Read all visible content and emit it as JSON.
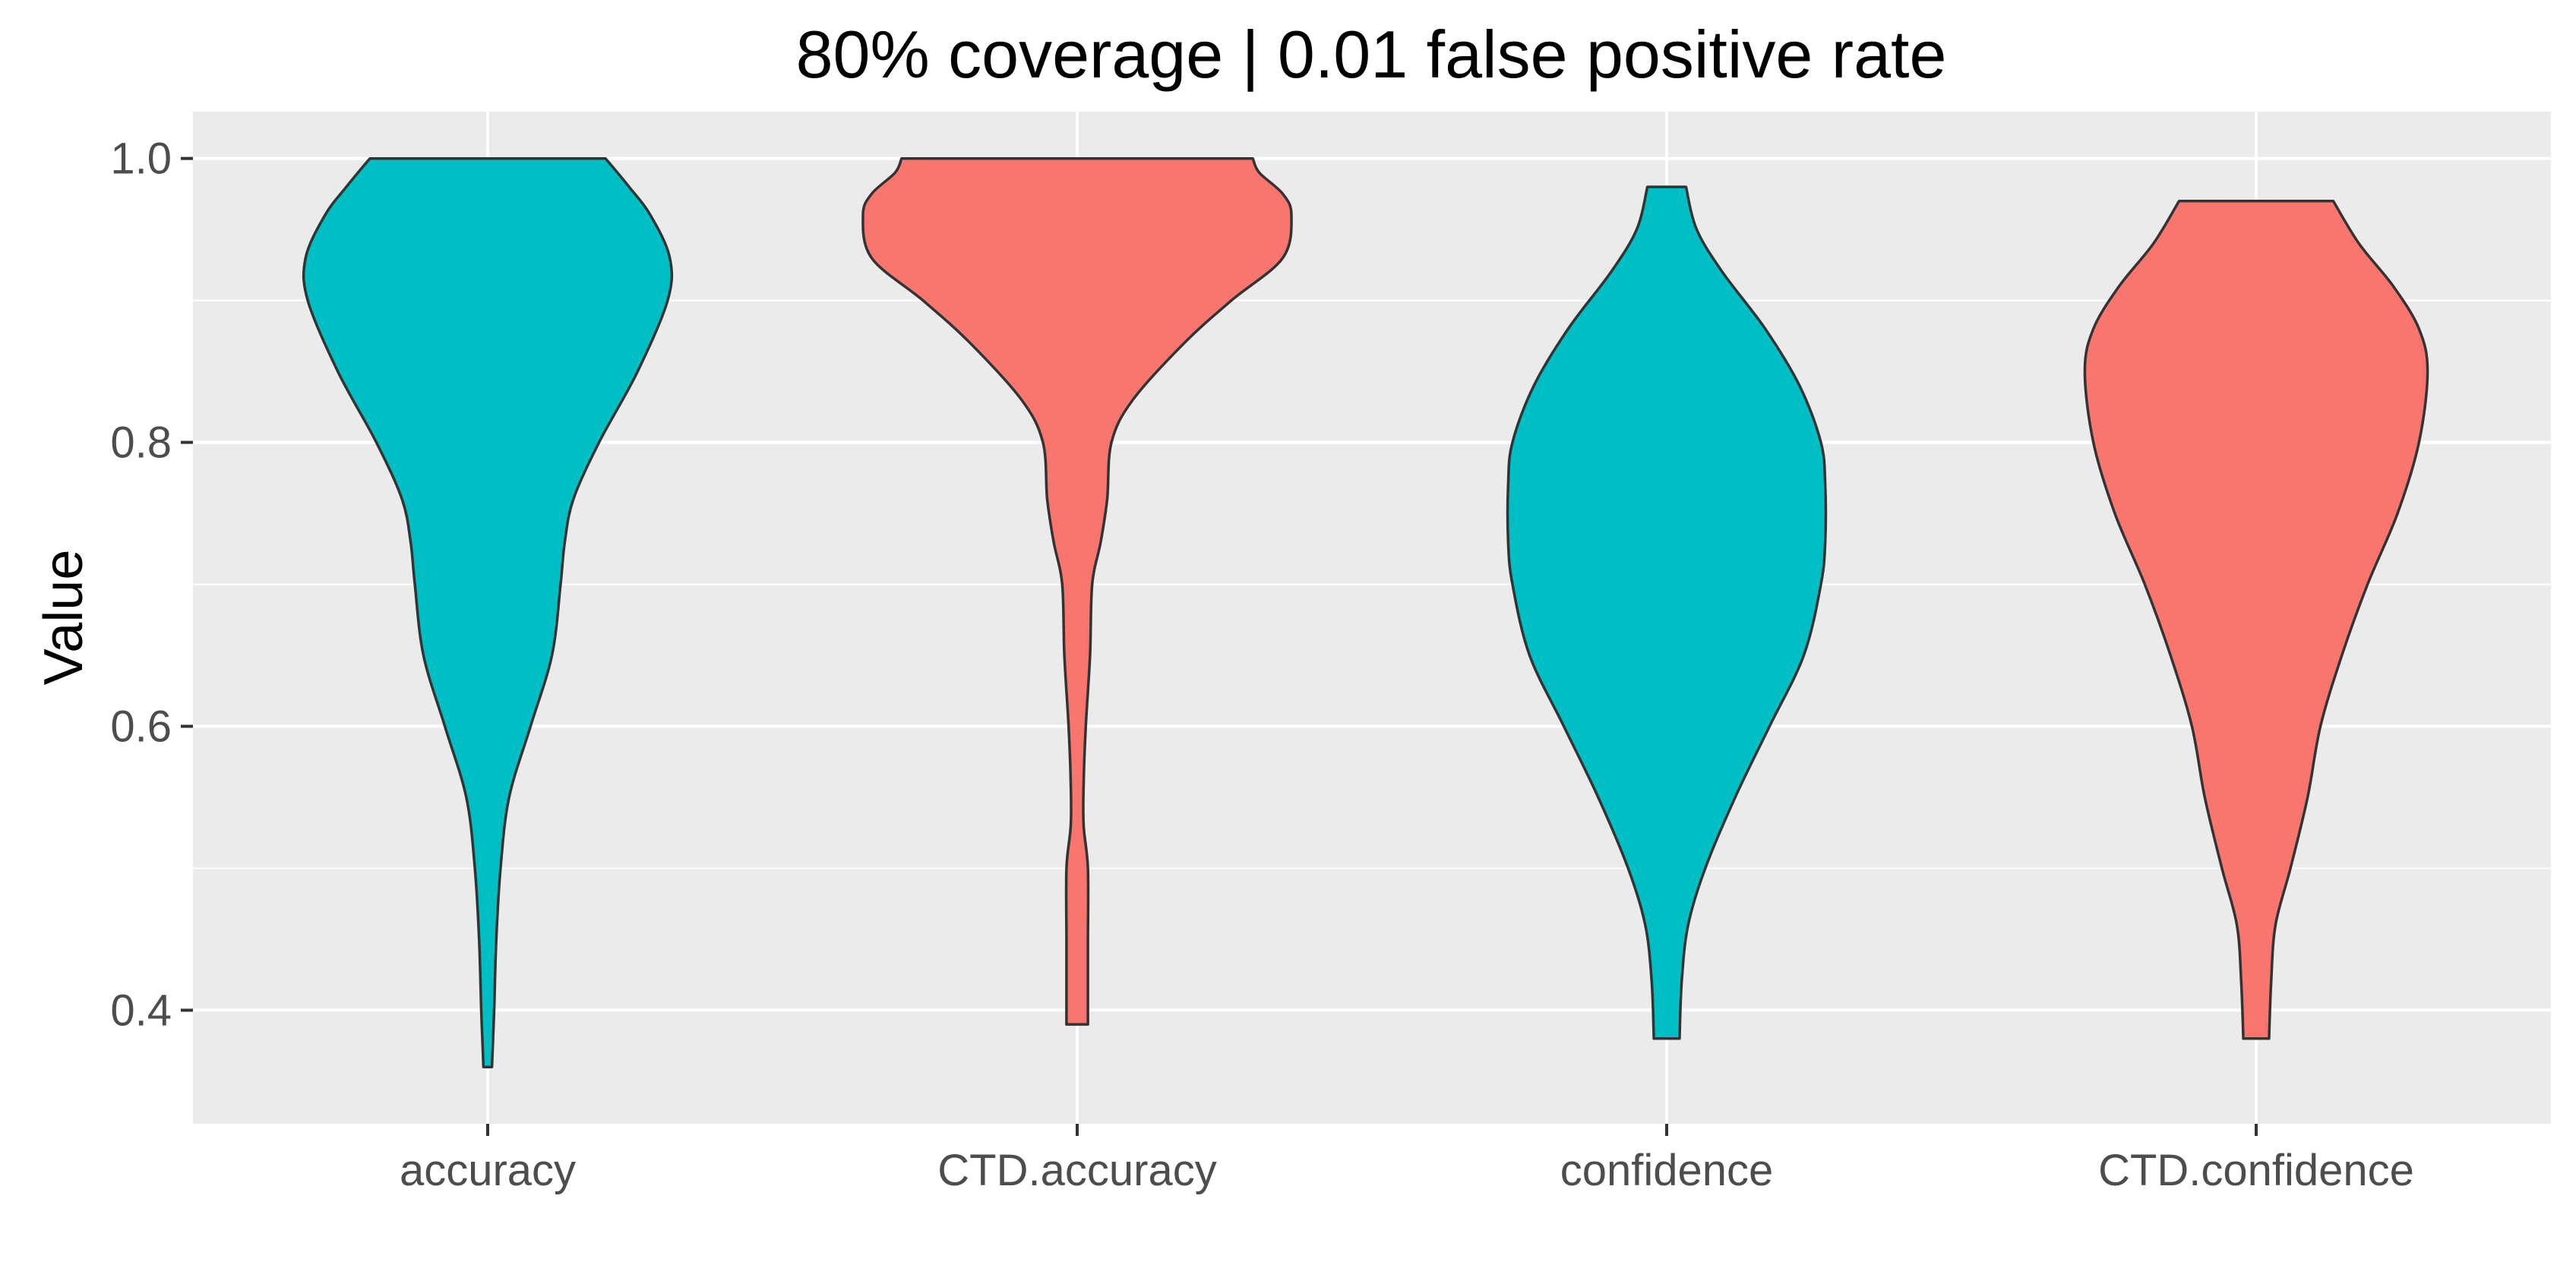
{
  "chart_data": {
    "type": "violin",
    "title": "80% coverage | 0.01 false positive rate",
    "xlabel": "",
    "ylabel": "Value",
    "ylim": [
      0.32,
      1.033
    ],
    "y_ticks": [
      "0.4",
      "0.6",
      "0.8",
      "1.0"
    ],
    "y_tick_values": [
      0.4,
      0.6,
      0.8,
      1.0
    ],
    "y_minor_ticks": [
      0.5,
      0.7,
      0.9
    ],
    "categories": [
      "accuracy",
      "CTD.accuracy",
      "confidence",
      "CTD.confidence"
    ],
    "grid": true,
    "legend": "none",
    "background": "#ebebeb",
    "colors": {
      "accuracy": "#00bfc4",
      "CTD.accuracy": "#f8766d",
      "confidence": "#00bfc4",
      "CTD.confidence": "#f8766d"
    },
    "series": [
      {
        "category": "accuracy",
        "min": 0.36,
        "max": 1.0,
        "profile": [
          [
            0.36,
            0.02
          ],
          [
            0.4,
            0.03
          ],
          [
            0.45,
            0.04
          ],
          [
            0.5,
            0.06
          ],
          [
            0.55,
            0.1
          ],
          [
            0.6,
            0.2
          ],
          [
            0.65,
            0.3
          ],
          [
            0.7,
            0.34
          ],
          [
            0.73,
            0.36
          ],
          [
            0.76,
            0.4
          ],
          [
            0.8,
            0.52
          ],
          [
            0.85,
            0.7
          ],
          [
            0.9,
            0.84
          ],
          [
            0.93,
            0.85
          ],
          [
            0.96,
            0.76
          ],
          [
            0.98,
            0.66
          ],
          [
            1.0,
            0.55
          ]
        ]
      },
      {
        "category": "CTD.accuracy",
        "min": 0.39,
        "max": 1.0,
        "profile": [
          [
            0.39,
            0.05
          ],
          [
            0.42,
            0.05
          ],
          [
            0.45,
            0.05
          ],
          [
            0.5,
            0.05
          ],
          [
            0.53,
            0.03
          ],
          [
            0.56,
            0.03
          ],
          [
            0.6,
            0.04
          ],
          [
            0.65,
            0.06
          ],
          [
            0.7,
            0.07
          ],
          [
            0.73,
            0.11
          ],
          [
            0.76,
            0.14
          ],
          [
            0.8,
            0.16
          ],
          [
            0.83,
            0.26
          ],
          [
            0.87,
            0.5
          ],
          [
            0.9,
            0.72
          ],
          [
            0.93,
            0.96
          ],
          [
            0.96,
            1.0
          ],
          [
            0.975,
            0.96
          ],
          [
            0.99,
            0.85
          ],
          [
            1.0,
            0.82
          ]
        ]
      },
      {
        "category": "confidence",
        "min": 0.38,
        "max": 0.98,
        "profile": [
          [
            0.38,
            0.06
          ],
          [
            0.42,
            0.07
          ],
          [
            0.46,
            0.1
          ],
          [
            0.5,
            0.18
          ],
          [
            0.55,
            0.32
          ],
          [
            0.6,
            0.48
          ],
          [
            0.65,
            0.64
          ],
          [
            0.7,
            0.72
          ],
          [
            0.73,
            0.74
          ],
          [
            0.77,
            0.74
          ],
          [
            0.8,
            0.72
          ],
          [
            0.84,
            0.62
          ],
          [
            0.88,
            0.46
          ],
          [
            0.92,
            0.26
          ],
          [
            0.95,
            0.14
          ],
          [
            0.98,
            0.09
          ]
        ]
      },
      {
        "category": "CTD.confidence",
        "min": 0.38,
        "max": 0.97,
        "profile": [
          [
            0.38,
            0.06
          ],
          [
            0.42,
            0.07
          ],
          [
            0.46,
            0.09
          ],
          [
            0.5,
            0.16
          ],
          [
            0.55,
            0.24
          ],
          [
            0.6,
            0.3
          ],
          [
            0.65,
            0.4
          ],
          [
            0.7,
            0.52
          ],
          [
            0.75,
            0.66
          ],
          [
            0.8,
            0.76
          ],
          [
            0.85,
            0.8
          ],
          [
            0.88,
            0.76
          ],
          [
            0.91,
            0.64
          ],
          [
            0.94,
            0.48
          ],
          [
            0.97,
            0.36
          ]
        ]
      }
    ]
  }
}
